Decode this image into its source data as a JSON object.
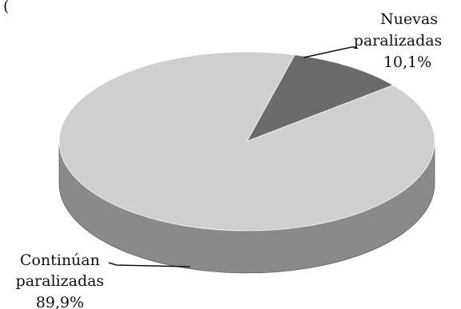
{
  "top_fragment": "(",
  "chart_data": {
    "type": "pie",
    "style": "3d",
    "labels": [
      "Nuevas paralizadas",
      "Continúan paralizadas"
    ],
    "values": [
      10.1,
      89.9
    ],
    "value_labels": [
      "10,1%",
      "89,9%"
    ],
    "label_lines": [
      [
        "Nuevas",
        "paralizadas",
        "10,1%"
      ],
      [
        "Continúan",
        "paralizadas",
        "89,9%"
      ]
    ],
    "colors": {
      "top": [
        "#6b6b6b",
        "#cfcfcf"
      ],
      "side": [
        "#555555",
        "#8a8a8a"
      ]
    },
    "legend": "none",
    "title": ""
  }
}
